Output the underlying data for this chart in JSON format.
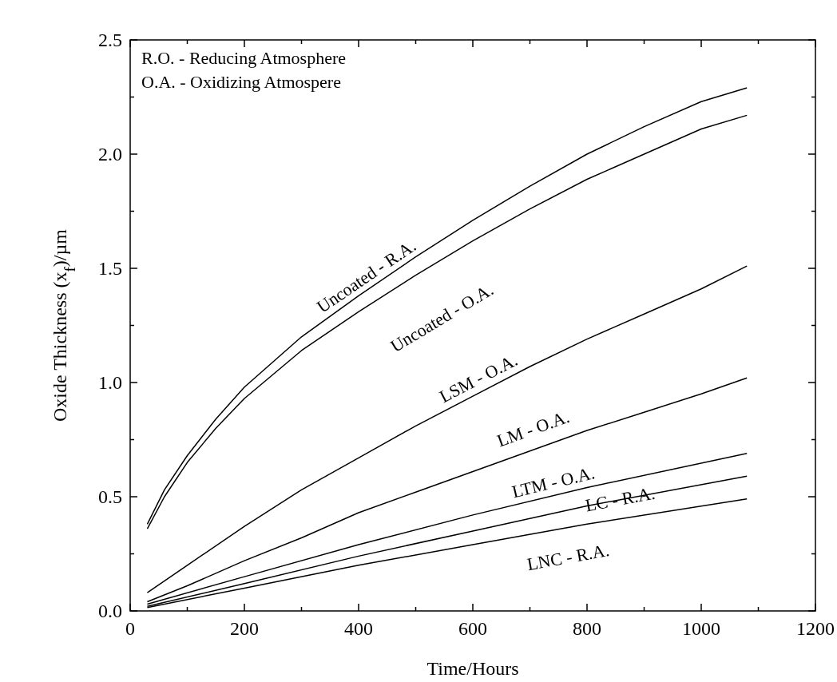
{
  "chart_data": {
    "type": "line",
    "xlabel": "Time/Hours",
    "ylabel": "Oxide Thickness (x$_{f}$)/µm",
    "xlim": [
      0,
      1200
    ],
    "xticks": [
      0,
      {
        "value": 100,
        "label": null
      },
      200,
      {
        "value": 300,
        "label": null
      },
      400,
      {
        "value": 500,
        "label": null
      },
      600,
      {
        "value": 700,
        "label": null
      },
      800,
      {
        "value": 900,
        "label": null
      },
      1000,
      {
        "value": 1100,
        "label": null
      },
      1200
    ],
    "ylim": [
      0,
      2.5
    ],
    "yticks": [
      {
        "value": 0,
        "label": "0.0"
      },
      {
        "value": 0.25,
        "label": null
      },
      0.5,
      {
        "value": 0.75,
        "label": null
      },
      {
        "value": 1,
        "label": "1.0"
      },
      {
        "value": 1.25,
        "label": null
      },
      1.5,
      {
        "value": 1.75,
        "label": null
      },
      {
        "value": 2,
        "label": "2.0"
      },
      {
        "value": 2.25,
        "label": null
      },
      2.5
    ],
    "grid": false,
    "marker": "none",
    "line_style": "solid",
    "series": [
      {
        "color": "#000000",
        "x": [
          30,
          60,
          100,
          150,
          200,
          300,
          400,
          500,
          600,
          700,
          800,
          900,
          1000,
          1080
        ],
        "values": [
          0.38,
          0.53,
          0.68,
          0.84,
          0.98,
          1.2,
          1.38,
          1.55,
          1.71,
          1.86,
          2.0,
          2.12,
          2.23,
          2.29
        ]
      },
      {
        "color": "#000000",
        "x": [
          30,
          60,
          100,
          150,
          200,
          300,
          400,
          500,
          600,
          700,
          800,
          900,
          1000,
          1080
        ],
        "values": [
          0.36,
          0.5,
          0.65,
          0.8,
          0.93,
          1.14,
          1.31,
          1.47,
          1.62,
          1.76,
          1.89,
          2.0,
          2.11,
          2.17
        ]
      },
      {
        "color": "#000000",
        "x": [
          30,
          100,
          200,
          300,
          400,
          500,
          600,
          700,
          800,
          900,
          1000,
          1080
        ],
        "values": [
          0.08,
          0.2,
          0.37,
          0.53,
          0.67,
          0.81,
          0.94,
          1.07,
          1.19,
          1.3,
          1.41,
          1.51
        ]
      },
      {
        "color": "#000000",
        "x": [
          30,
          100,
          200,
          300,
          400,
          500,
          600,
          700,
          800,
          900,
          1000,
          1080
        ],
        "values": [
          0.04,
          0.11,
          0.22,
          0.32,
          0.43,
          0.52,
          0.61,
          0.7,
          0.79,
          0.87,
          0.95,
          1.02
        ]
      },
      {
        "color": "#000000",
        "x": [
          30,
          200,
          400,
          600,
          800,
          1080
        ],
        "values": [
          0.03,
          0.15,
          0.29,
          0.42,
          0.54,
          0.69
        ]
      },
      {
        "color": "#000000",
        "x": [
          30,
          200,
          400,
          600,
          800,
          1080
        ],
        "values": [
          0.02,
          0.12,
          0.24,
          0.35,
          0.46,
          0.59
        ]
      },
      {
        "color": "#000000",
        "x": [
          30,
          200,
          400,
          600,
          800,
          1080
        ],
        "values": [
          0.015,
          0.1,
          0.2,
          0.29,
          0.38,
          0.49
        ]
      }
    ],
    "annotations": [
      {
        "text": "Uncoated - R.A.",
        "x": 426,
        "y": 1.42
      },
      {
        "text": "Uncoated - O.A.",
        "x": 501,
        "y": 1.47
      },
      {
        "text": "LSM - O.A.",
        "x": 620,
        "y": 0.97
      },
      {
        "text": "LM - O.A.",
        "x": 717,
        "y": 0.72
      },
      {
        "text": "LTM - O.A.",
        "x": 746,
        "y": 0.51
      },
      {
        "text": "LC - R.A.",
        "x": 858,
        "y": 0.49
      },
      {
        "text": "LNC - R.A.",
        "x": 758,
        "y": 0.36
      },
      "R.O. - Reducing Atmosphere",
      "O.A. - Oxidizing Atmospere"
    ]
  }
}
